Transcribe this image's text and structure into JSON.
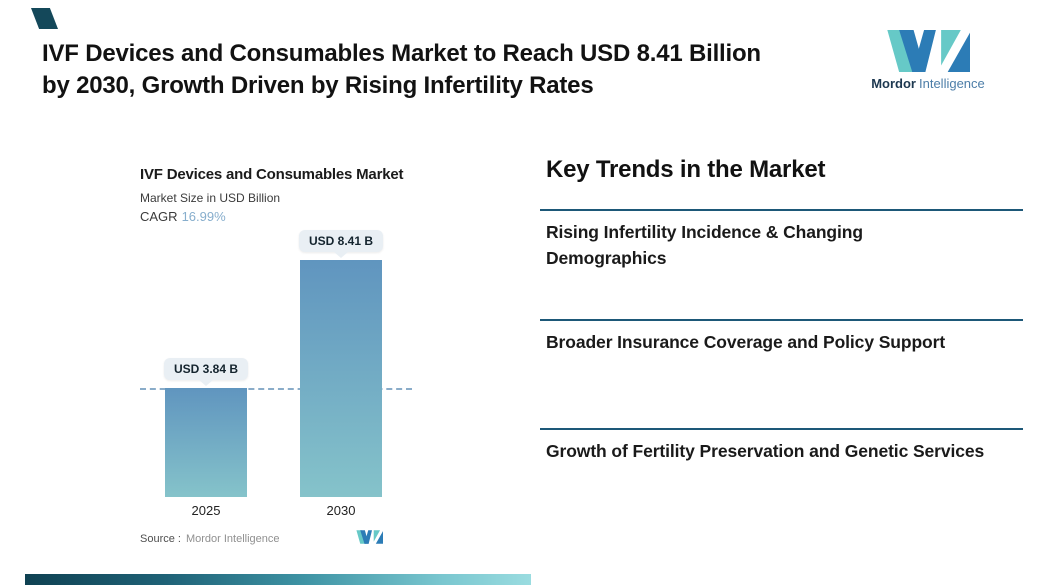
{
  "header": {
    "title_line1": "IVF Devices and Consumables Market to Reach USD 8.41 Billion",
    "title_line2": "by 2030, Growth Driven by Rising Infertility Rates"
  },
  "brand": {
    "name_bold": "Mordor",
    "name_light": "Intelligence"
  },
  "chart": {
    "title": "IVF Devices and Consumables Market",
    "subtitle": "Market Size in USD Billion",
    "cagr_label": "CAGR",
    "cagr_value": "16.99%",
    "source_label": "Source :",
    "source_value": "Mordor Intelligence"
  },
  "chart_data": {
    "type": "bar",
    "title": "IVF Devices and Consumables Market",
    "subtitle": "Market Size in USD Billion",
    "unit": "USD Billion",
    "cagr_pct": 16.99,
    "categories": [
      "2025",
      "2030"
    ],
    "values": [
      3.84,
      8.41
    ],
    "value_labels": [
      "USD 3.84 B",
      "USD 8.41 B"
    ],
    "ylim": [
      0,
      9.4
    ],
    "reference_line_value": 3.84,
    "reference_line_style": "dashed",
    "grid": false,
    "legend": "none",
    "source": "Mordor Intelligence"
  },
  "trends": {
    "heading": "Key Trends in the Market",
    "items": [
      "Rising Infertility Incidence & Changing Demographics",
      "Broader Insurance Coverage and Policy Support",
      "Growth of Fertility Preservation and Genetic Services"
    ]
  },
  "colors": {
    "accent_rule": "#1D5878",
    "dashed_line": "#8AACC9",
    "tooltip_bg": "#E9EFF4",
    "cagr_value": "#87AECD",
    "bar_gradient_top": "#6095BF",
    "bar_gradient_bottom": "#85C3CA",
    "logo_teal": "#66C9C7",
    "logo_blue": "#2C7CB6",
    "corner_accent": "#14485A"
  }
}
